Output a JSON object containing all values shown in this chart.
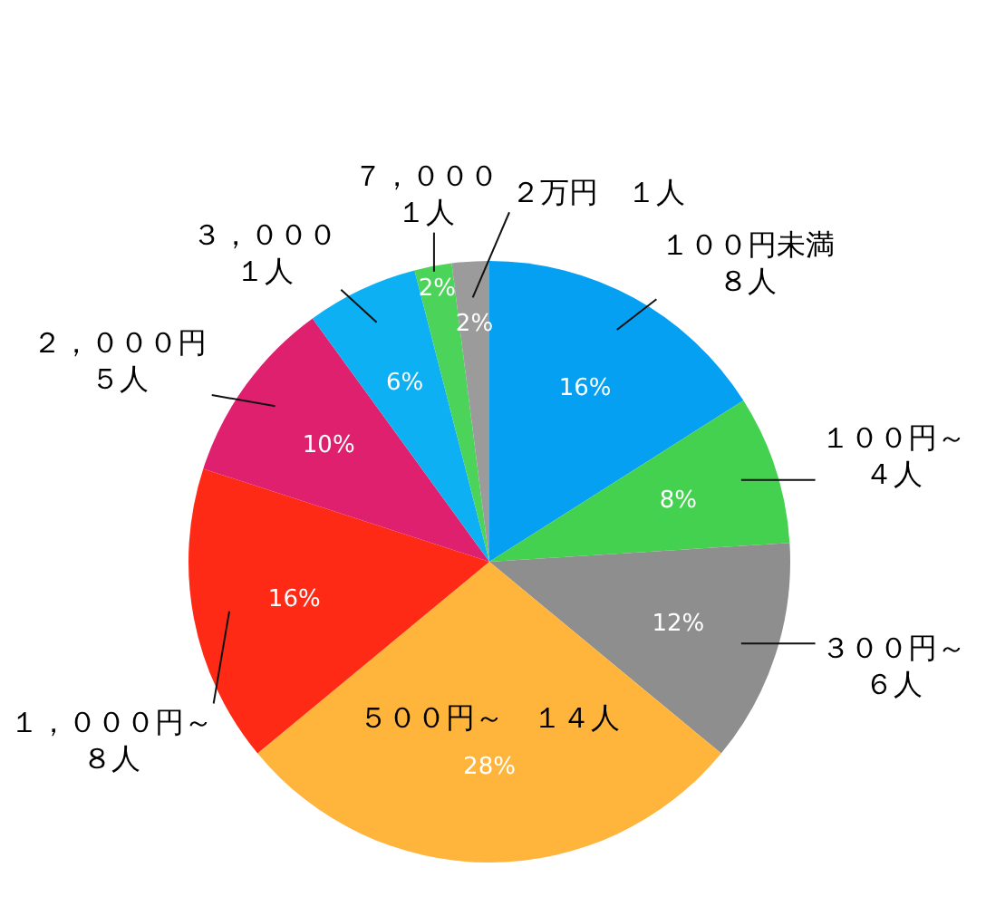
{
  "chart_data": {
    "type": "pie",
    "categories": [
      "１００円未満８人",
      "１００円～４人",
      "３００円～６人",
      "５００円～　１４人",
      "１，０００円～８人",
      "２，０００円５人",
      "３，０００１人",
      "７，０００１人",
      "２万円　１人"
    ],
    "values": [
      16,
      8,
      12,
      28,
      16,
      10,
      6,
      2,
      2
    ],
    "colors": [
      "#06a0f2",
      "#43d14f",
      "#8e8e8e",
      "#ffb53b",
      "#fe2a16",
      "#df206f",
      "#0db0f2",
      "#4cd35a",
      "#9b9b9b"
    ],
    "value_labels": [
      "16%",
      "8%",
      "12%",
      "28%",
      "16%",
      "10%",
      "6%",
      "2%",
      "2%"
    ]
  }
}
